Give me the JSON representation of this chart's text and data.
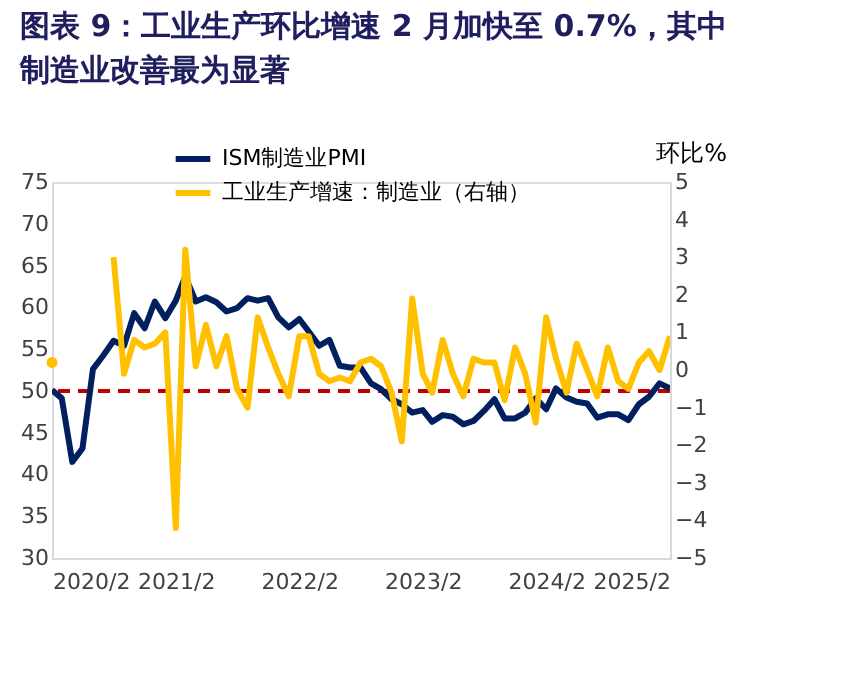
{
  "chart_data": {
    "type": "line",
    "title": "图表 9：工业生产环比增速 2 月加快至 0.7%，其中制造业改善最为显著",
    "y2label": "环比%",
    "x": [
      "2020-02",
      "2020-03",
      "2020-04",
      "2020-05",
      "2020-06",
      "2020-07",
      "2020-08",
      "2020-09",
      "2020-10",
      "2020-11",
      "2020-12",
      "2021-01",
      "2021-02",
      "2021-03",
      "2021-04",
      "2021-05",
      "2021-06",
      "2021-07",
      "2021-08",
      "2021-09",
      "2021-10",
      "2021-11",
      "2021-12",
      "2022-01",
      "2022-02",
      "2022-03",
      "2022-04",
      "2022-05",
      "2022-06",
      "2022-07",
      "2022-08",
      "2022-09",
      "2022-10",
      "2022-11",
      "2022-12",
      "2023-01",
      "2023-02",
      "2023-03",
      "2023-04",
      "2023-05",
      "2023-06",
      "2023-07",
      "2023-08",
      "2023-09",
      "2023-10",
      "2023-11",
      "2023-12",
      "2024-01",
      "2024-02",
      "2024-03",
      "2024-04",
      "2024-05",
      "2024-06",
      "2024-07",
      "2024-08",
      "2024-09",
      "2024-10",
      "2024-11",
      "2024-12",
      "2025-01",
      "2025-02"
    ],
    "series": [
      {
        "name": "ISM制造业PMI",
        "color": "#002060",
        "values": [
          50.1,
          49.1,
          41.5,
          43.1,
          52.6,
          54.2,
          56.0,
          55.4,
          59.3,
          57.5,
          60.7,
          58.7,
          60.8,
          63.7,
          60.7,
          61.2,
          60.6,
          59.5,
          59.9,
          61.1,
          60.8,
          61.1,
          58.8,
          57.6,
          58.6,
          57.1,
          55.4,
          56.1,
          53.0,
          52.8,
          52.8,
          50.9,
          50.2,
          49.0,
          48.4,
          47.4,
          47.7,
          46.3,
          47.1,
          46.9,
          46.0,
          46.4,
          47.6,
          49.0,
          46.7,
          46.7,
          47.4,
          49.1,
          47.8,
          50.3,
          49.2,
          48.7,
          48.5,
          46.8,
          47.2,
          47.2,
          46.5,
          48.4,
          49.3,
          50.9,
          50.3
        ]
      },
      {
        "name": "工业生产增速：制造业（右轴）",
        "color": "#ffc000",
        "axis": "y2",
        "values": [
          0.2,
          null,
          null,
          null,
          null,
          null,
          3.0,
          -0.1,
          0.8,
          0.6,
          0.7,
          1.0,
          -4.2,
          3.2,
          0.1,
          1.2,
          0.1,
          0.9,
          -0.5,
          -1.0,
          1.4,
          0.6,
          -0.1,
          -0.7,
          0.9,
          0.9,
          -0.1,
          -0.3,
          -0.2,
          -0.3,
          0.2,
          0.3,
          0.1,
          -0.6,
          -1.9,
          1.9,
          -0.1,
          -0.6,
          0.8,
          -0.1,
          -0.7,
          0.3,
          0.2,
          0.2,
          -0.8,
          0.6,
          -0.1,
          -1.4,
          1.4,
          0.3,
          -0.6,
          0.7,
          0.0,
          -0.7,
          0.6,
          -0.3,
          -0.5,
          0.2,
          0.5,
          0.0,
          0.9
        ]
      }
    ],
    "xlim": [
      "2020-02",
      "2025-02"
    ],
    "xticks": [
      {
        "value": "2020-02",
        "label": "2020/2"
      },
      {
        "value": "2021-02",
        "label": "2021/2"
      },
      {
        "value": "2022-02",
        "label": "2022/2"
      },
      {
        "value": "2023-02",
        "label": "2023/2"
      },
      {
        "value": "2024-02",
        "label": "2024/2"
      },
      {
        "value": "2025-02",
        "label": "2025/2"
      }
    ],
    "ylim": [
      30,
      75
    ],
    "yticks": [
      30,
      35,
      40,
      45,
      50,
      55,
      60,
      65,
      70,
      75
    ],
    "y2lim": [
      -5,
      5
    ],
    "y2ticks": [
      -5,
      -4,
      -3,
      -2,
      -1,
      0,
      1,
      2,
      3,
      4,
      5
    ],
    "ref_lines": [
      {
        "axis": "y",
        "value": 50,
        "color": "#c00000",
        "line_style": "dashed"
      }
    ],
    "grid": false,
    "legend": "top",
    "marker": "none",
    "line_style": "solid"
  }
}
